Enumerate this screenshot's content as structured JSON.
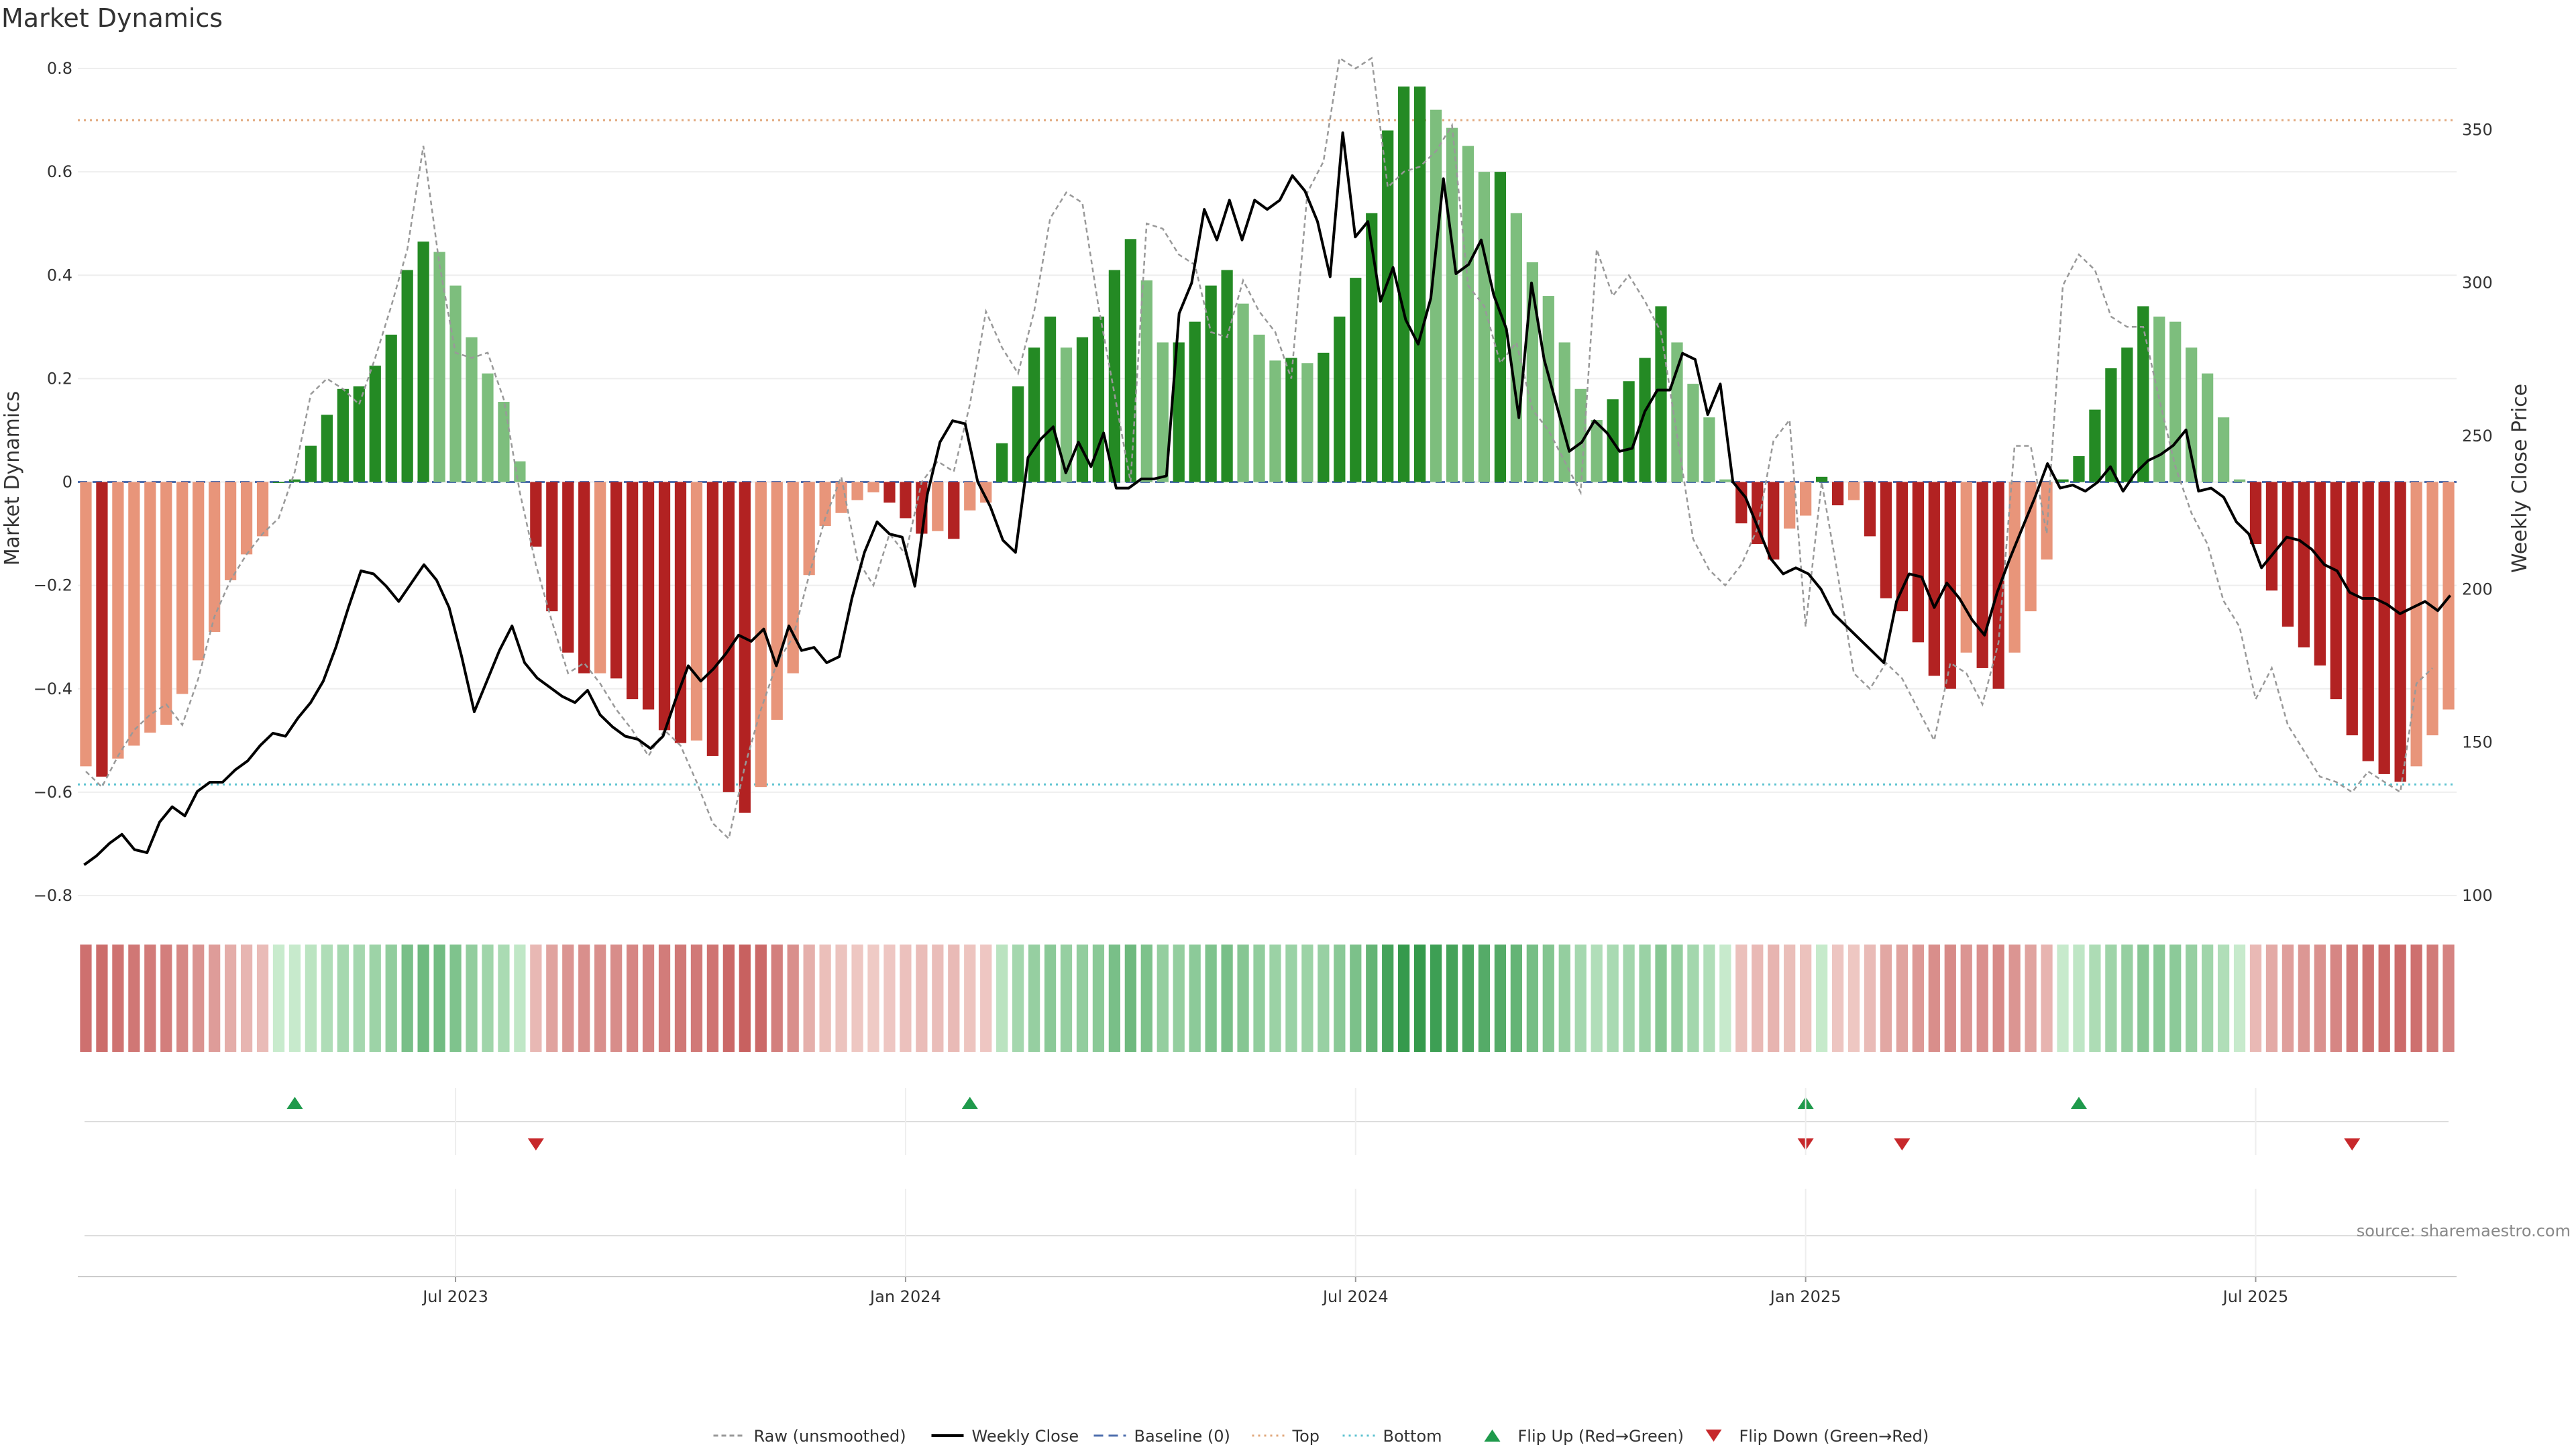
{
  "chart_data": {
    "title": "Market Dynamics",
    "type": "bar+line",
    "y_left": {
      "label": "Market Dynamics",
      "range": [
        -0.8,
        0.8
      ],
      "ticks": [
        "0.8",
        "0.6",
        "0.4",
        "0.2",
        "0",
        "−0.2",
        "−0.4",
        "−0.6",
        "−0.8"
      ]
    },
    "y_right": {
      "label": "Weekly Close Price",
      "range": [
        100,
        370
      ],
      "ticks": [
        "350",
        "300",
        "250",
        "200",
        "150",
        "100"
      ]
    },
    "x_axis": {
      "ticks": [
        {
          "label": "Jul 2023",
          "index": 23
        },
        {
          "label": "Jan 2024",
          "index": 51
        },
        {
          "label": "Jul 2024",
          "index": 79
        },
        {
          "label": "Jan 2025",
          "index": 107
        },
        {
          "label": "Jul 2025",
          "index": 135
        }
      ]
    },
    "reference_lines": {
      "top": 0.7,
      "bottom": -0.585,
      "baseline": 0
    },
    "smoothed": [
      -0.55,
      -0.57,
      -0.535,
      -0.51,
      -0.485,
      -0.47,
      -0.41,
      -0.345,
      -0.29,
      -0.19,
      -0.14,
      -0.105,
      0,
      0.005,
      0.07,
      0.13,
      0.18,
      0.185,
      0.225,
      0.285,
      0.41,
      0.465,
      0.445,
      0.38,
      0.28,
      0.21,
      0.155,
      0.04,
      -0.125,
      -0.25,
      -0.33,
      -0.37,
      -0.37,
      -0.38,
      -0.42,
      -0.44,
      -0.48,
      -0.505,
      -0.5,
      -0.53,
      -0.6,
      -0.64,
      -0.59,
      -0.46,
      -0.37,
      -0.18,
      -0.085,
      -0.06,
      -0.035,
      -0.02,
      -0.04,
      -0.07,
      -0.1,
      -0.095,
      -0.11,
      -0.055,
      -0.04,
      0.075,
      0.185,
      0.26,
      0.32,
      0.26,
      0.28,
      0.32,
      0.41,
      0.47,
      0.39,
      0.27,
      0.27,
      0.31,
      0.38,
      0.41,
      0.345,
      0.285,
      0.235,
      0.24,
      0.23,
      0.25,
      0.32,
      0.395,
      0.52,
      0.68,
      0.765,
      0.765,
      0.72,
      0.685,
      0.65,
      0.6,
      0.6,
      0.52,
      0.425,
      0.36,
      0.27,
      0.18,
      0.12,
      0.16,
      0.195,
      0.24,
      0.34,
      0.27,
      0.19,
      0.125,
      0.005,
      -0.08,
      -0.12,
      -0.15,
      -0.09,
      -0.065,
      0.01,
      -0.045,
      -0.035,
      -0.105,
      -0.225,
      -0.25,
      -0.31,
      -0.375,
      -0.4,
      -0.33,
      -0.36,
      -0.4,
      -0.33,
      -0.25,
      -0.15,
      0.005,
      0.05,
      0.14,
      0.22,
      0.26,
      0.34,
      0.32,
      0.31,
      0.26,
      0.21,
      0.125,
      0.005,
      -0.12,
      -0.21,
      -0.28,
      -0.32,
      -0.355,
      -0.42,
      -0.49,
      -0.54,
      -0.565,
      -0.58,
      -0.55,
      -0.49,
      -0.44
    ],
    "raw": [
      -0.56,
      -0.59,
      -0.53,
      -0.48,
      -0.45,
      -0.43,
      -0.47,
      -0.38,
      -0.26,
      -0.19,
      -0.14,
      -0.1,
      -0.07,
      0.02,
      0.17,
      0.2,
      0.18,
      0.15,
      0.24,
      0.34,
      0.45,
      0.65,
      0.42,
      0.25,
      0.24,
      0.25,
      0.16,
      -0.02,
      -0.16,
      -0.27,
      -0.37,
      -0.35,
      -0.39,
      -0.44,
      -0.48,
      -0.53,
      -0.48,
      -0.51,
      -0.58,
      -0.66,
      -0.69,
      -0.55,
      -0.44,
      -0.35,
      -0.3,
      -0.18,
      -0.07,
      0.01,
      -0.15,
      -0.2,
      -0.1,
      -0.14,
      0.0,
      0.04,
      0.02,
      0.15,
      0.33,
      0.26,
      0.21,
      0.33,
      0.51,
      0.56,
      0.54,
      0.34,
      0.17,
      0.0,
      0.5,
      0.49,
      0.44,
      0.42,
      0.29,
      0.28,
      0.39,
      0.33,
      0.29,
      0.2,
      0.56,
      0.62,
      0.82,
      0.8,
      0.82,
      0.57,
      0.6,
      0.61,
      0.64,
      0.69,
      0.38,
      0.34,
      0.23,
      0.27,
      0.14,
      0.1,
      0.04,
      -0.02,
      0.45,
      0.36,
      0.4,
      0.35,
      0.29,
      0.09,
      -0.11,
      -0.17,
      -0.2,
      -0.16,
      -0.09,
      0.08,
      0.12,
      -0.28,
      0.0,
      -0.18,
      -0.37,
      -0.4,
      -0.35,
      -0.38,
      -0.44,
      -0.5,
      -0.35,
      -0.37,
      -0.43,
      -0.31,
      0.07,
      0.07,
      -0.1,
      0.38,
      0.44,
      0.41,
      0.32,
      0.3,
      0.3,
      0.16,
      0.03,
      -0.06,
      -0.12,
      -0.23,
      -0.28,
      -0.42,
      -0.36,
      -0.47,
      -0.52,
      -0.57,
      -0.58,
      -0.6,
      -0.56,
      -0.58,
      -0.6,
      -0.39,
      -0.36
    ],
    "weekly_close": [
      110,
      113,
      117,
      120,
      115,
      114,
      124,
      129,
      126,
      134,
      137,
      137,
      141,
      144,
      149,
      153,
      152,
      158,
      163,
      170,
      181,
      194,
      206,
      205,
      201,
      196,
      202,
      208,
      203,
      194,
      178,
      160,
      170,
      180,
      188,
      176,
      171,
      168,
      165,
      163,
      167,
      159,
      155,
      152,
      151,
      148,
      152,
      164,
      175,
      170,
      174,
      179,
      185,
      183,
      187,
      175,
      188,
      180,
      181,
      176,
      178,
      197,
      212,
      222,
      218,
      217,
      201,
      231,
      248,
      255,
      254,
      235,
      227,
      216,
      212,
      243,
      249,
      253,
      238,
      248,
      240,
      251,
      233,
      233,
      236,
      236,
      237,
      290,
      300,
      324,
      314,
      327,
      314,
      327,
      324,
      327,
      335,
      330,
      320,
      302,
      349,
      315,
      320,
      294,
      305,
      288,
      280,
      295,
      334,
      303,
      306,
      314,
      296,
      285,
      256,
      300,
      275,
      260,
      245,
      248,
      255,
      251,
      245,
      246,
      258,
      265,
      265,
      277,
      275,
      257,
      267,
      235,
      230,
      220,
      210,
      205,
      207,
      205,
      200,
      192,
      188,
      184,
      180,
      176,
      196,
      205,
      204,
      194,
      202,
      197,
      190,
      185,
      199,
      210,
      220,
      230,
      241,
      233,
      234,
      232,
      235,
      240,
      232,
      238,
      242,
      244,
      247,
      252,
      232,
      233,
      230,
      222,
      218,
      207,
      212,
      217,
      216,
      213,
      208,
      206,
      199,
      197,
      197,
      195,
      192,
      194,
      196,
      193,
      198
    ],
    "flip_up_indices": [
      13,
      55,
      107,
      124
    ],
    "flip_down_indices": [
      28,
      107,
      113,
      141
    ],
    "legend": [
      {
        "label": "Raw (unsmoothed)",
        "style": "dashed",
        "color": "#999999"
      },
      {
        "label": "Weekly Close",
        "style": "solid",
        "color": "#000000"
      },
      {
        "label": "Baseline (0)",
        "style": "dashed",
        "color": "#4f6fae"
      },
      {
        "label": "Top",
        "style": "dotted",
        "color": "#e1a87c"
      },
      {
        "label": "Bottom",
        "style": "dotted",
        "color": "#5ec3d0"
      },
      {
        "label": "Flip Up (Red→Green)",
        "style": "triangle-up",
        "color": "#1f9a4c"
      },
      {
        "label": "Flip Down (Green→Red)",
        "style": "triangle-down",
        "color": "#c7282b"
      }
    ],
    "source": "source: sharemaestro.com"
  }
}
